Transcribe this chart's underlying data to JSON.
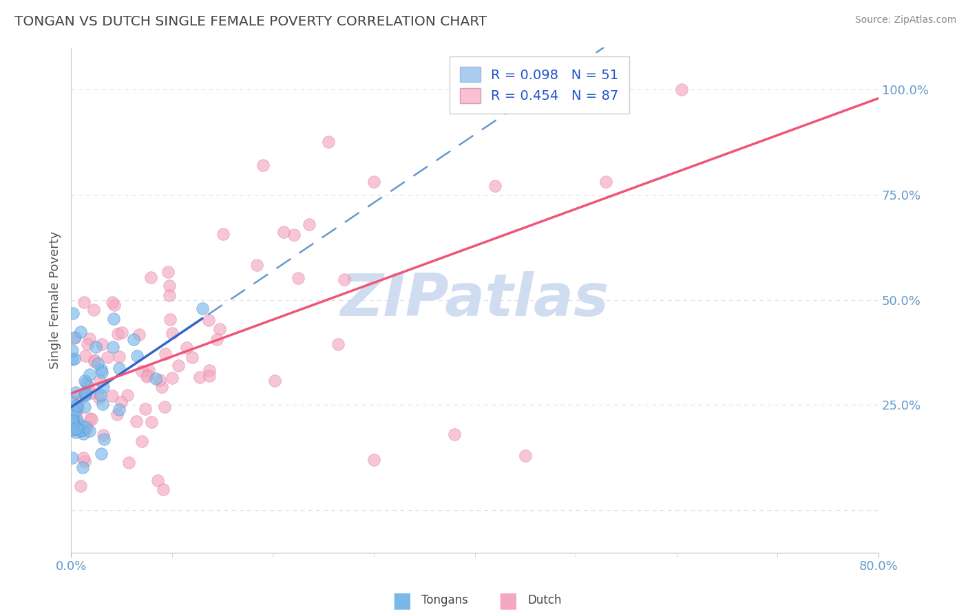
{
  "title": "TONGAN VS DUTCH SINGLE FEMALE POVERTY CORRELATION CHART",
  "source": "Source: ZipAtlas.com",
  "ylabel": "Single Female Poverty",
  "legend_r1": "R = 0.098   N = 51",
  "legend_r2": "R = 0.454   N = 87",
  "tongan_color": "#7ab8e8",
  "tongan_edge": "#4488cc",
  "tongan_legend_face": "#aaccee",
  "dutch_color": "#f4a8c0",
  "dutch_edge": "#e070a0",
  "dutch_legend_face": "#f8c0d0",
  "trend_tongan_solid": "#3366cc",
  "trend_tongan_dashed": "#6699cc",
  "trend_dutch": "#ee5577",
  "xlim": [
    0.0,
    0.8
  ],
  "ylim": [
    -0.1,
    1.1
  ],
  "y_ticks": [
    0.0,
    0.25,
    0.5,
    0.75,
    1.0
  ],
  "y_tick_labels": [
    "",
    "25.0%",
    "50.0%",
    "75.0%",
    "100.0%"
  ],
  "background_color": "#ffffff",
  "grid_color": "#d8dde8",
  "title_color": "#444444",
  "source_color": "#888888",
  "axis_tick_color": "#6699cc",
  "watermark_color": "#d0ddf0"
}
